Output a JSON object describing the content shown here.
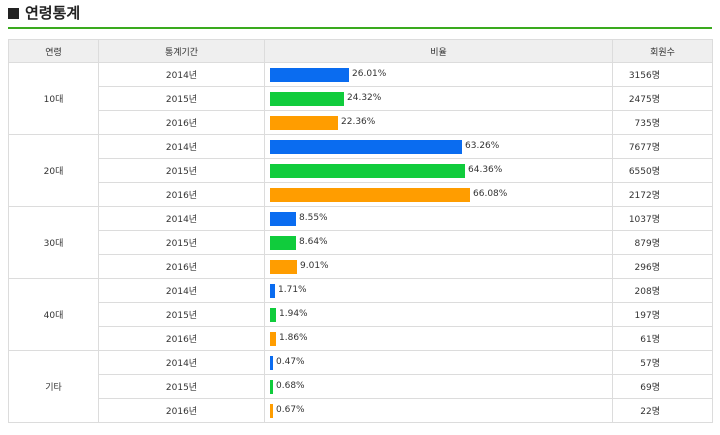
{
  "title": "연령통계",
  "headers": {
    "age": "연령",
    "period": "통계기간",
    "ratio": "비율",
    "members": "회원수"
  },
  "colors": {
    "2014": "#0a6cf0",
    "2015": "#10cc3c",
    "2016": "#ff9d00"
  },
  "groups": [
    {
      "age": "10대",
      "rows": [
        {
          "year": "2014년",
          "year_key": "2014",
          "pct": 26.01,
          "pct_label": "26.01%",
          "count": "3156명"
        },
        {
          "year": "2015년",
          "year_key": "2015",
          "pct": 24.32,
          "pct_label": "24.32%",
          "count": "2475명"
        },
        {
          "year": "2016년",
          "year_key": "2016",
          "pct": 22.36,
          "pct_label": "22.36%",
          "count": "735명"
        }
      ]
    },
    {
      "age": "20대",
      "rows": [
        {
          "year": "2014년",
          "year_key": "2014",
          "pct": 63.26,
          "pct_label": "63.26%",
          "count": "7677명"
        },
        {
          "year": "2015년",
          "year_key": "2015",
          "pct": 64.36,
          "pct_label": "64.36%",
          "count": "6550명"
        },
        {
          "year": "2016년",
          "year_key": "2016",
          "pct": 66.08,
          "pct_label": "66.08%",
          "count": "2172명"
        }
      ]
    },
    {
      "age": "30대",
      "rows": [
        {
          "year": "2014년",
          "year_key": "2014",
          "pct": 8.55,
          "pct_label": "8.55%",
          "count": "1037명"
        },
        {
          "year": "2015년",
          "year_key": "2015",
          "pct": 8.64,
          "pct_label": "8.64%",
          "count": "879명"
        },
        {
          "year": "2016년",
          "year_key": "2016",
          "pct": 9.01,
          "pct_label": "9.01%",
          "count": "296명"
        }
      ]
    },
    {
      "age": "40대",
      "rows": [
        {
          "year": "2014년",
          "year_key": "2014",
          "pct": 1.71,
          "pct_label": "1.71%",
          "count": "208명"
        },
        {
          "year": "2015년",
          "year_key": "2015",
          "pct": 1.94,
          "pct_label": "1.94%",
          "count": "197명"
        },
        {
          "year": "2016년",
          "year_key": "2016",
          "pct": 1.86,
          "pct_label": "1.86%",
          "count": "61명"
        }
      ]
    },
    {
      "age": "기타",
      "rows": [
        {
          "year": "2014년",
          "year_key": "2014",
          "pct": 0.47,
          "pct_label": "0.47%",
          "count": "57명"
        },
        {
          "year": "2015년",
          "year_key": "2015",
          "pct": 0.68,
          "pct_label": "0.68%",
          "count": "69명"
        },
        {
          "year": "2016년",
          "year_key": "2016",
          "pct": 0.67,
          "pct_label": "0.67%",
          "count": "22명"
        }
      ]
    }
  ]
}
